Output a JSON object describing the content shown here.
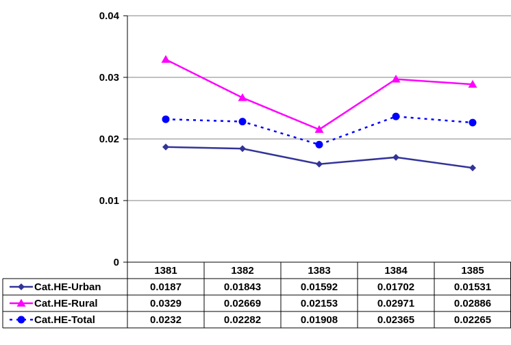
{
  "chart_data": {
    "type": "line",
    "categories": [
      "1381",
      "1382",
      "1383",
      "1384",
      "1385"
    ],
    "ylim": [
      0,
      0.04
    ],
    "yticks": [
      "0",
      "0.01",
      "0.02",
      "0.03",
      "0.04"
    ],
    "grid": true,
    "legend": "table-left",
    "series": [
      {
        "name": "Cat.HE-Urban",
        "values": [
          0.0187,
          0.01843,
          0.01592,
          0.01702,
          0.01531
        ],
        "labels": [
          "0.0187",
          "0.01843",
          "0.01592",
          "0.01702",
          "0.01531"
        ],
        "color": "#333399",
        "marker": "diamond",
        "dash": "solid"
      },
      {
        "name": "Cat.HE-Rural",
        "values": [
          0.0329,
          0.02669,
          0.02153,
          0.02971,
          0.02886
        ],
        "labels": [
          "0.0329",
          "0.02669",
          "0.02153",
          "0.02971",
          "0.02886"
        ],
        "color": "#ff00ff",
        "marker": "triangle",
        "dash": "solid"
      },
      {
        "name": "Cat.HE-Total",
        "values": [
          0.0232,
          0.02282,
          0.01908,
          0.02365,
          0.02265
        ],
        "labels": [
          "0.0232",
          "0.02282",
          "0.01908",
          "0.02365",
          "0.02265"
        ],
        "color": "#0000ff",
        "marker": "circle",
        "dash": "dotted"
      }
    ]
  }
}
